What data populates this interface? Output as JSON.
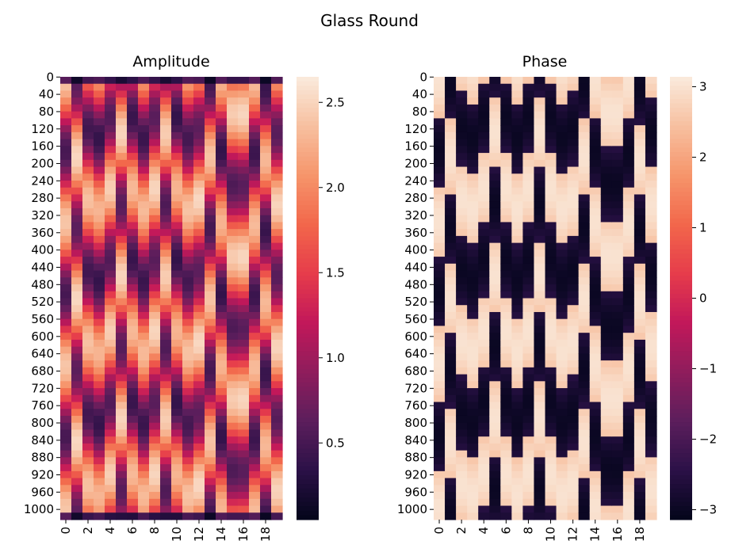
{
  "figure": {
    "suptitle": "Glass Round"
  },
  "colors": {
    "colormap": "rocket",
    "stops": [
      "#03051a",
      "#2b1147",
      "#5c1e5c",
      "#8f1d5c",
      "#c2185a",
      "#e63c4b",
      "#f2674b",
      "#f6956b",
      "#f7c0a0",
      "#faebdd"
    ]
  },
  "chart_data": [
    {
      "type": "heatmap",
      "title": "Amplitude",
      "xlabel": "",
      "ylabel": "",
      "columns": 20,
      "rows_range": [
        0,
        1023
      ],
      "x_tick_labels": [
        "0",
        "2",
        "4",
        "6",
        "8",
        "10",
        "12",
        "14",
        "16",
        "18"
      ],
      "y_tick_labels": [
        "0",
        "40",
        "80",
        "120",
        "160",
        "200",
        "240",
        "280",
        "320",
        "360",
        "400",
        "440",
        "480",
        "520",
        "560",
        "600",
        "640",
        "680",
        "720",
        "760",
        "800",
        "840",
        "880",
        "920",
        "960",
        "1000"
      ],
      "colorbar": {
        "range": [
          0.05,
          2.65
        ],
        "ticks": [
          0.5,
          1.0,
          1.5,
          2.0,
          2.5
        ],
        "tick_labels": [
          "0.5",
          "1.0",
          "1.5",
          "2.0",
          "2.5"
        ]
      },
      "pattern": "arched bands (interference fringes) peaking at column 7; dark minima near rows 390 and 710; low amplitude in first and last rows"
    },
    {
      "type": "heatmap",
      "title": "Phase",
      "xlabel": "",
      "ylabel": "",
      "columns": 20,
      "rows_range": [
        0,
        1023
      ],
      "x_tick_labels": [
        "0",
        "2",
        "4",
        "6",
        "8",
        "10",
        "12",
        "14",
        "16",
        "18"
      ],
      "y_tick_labels": [
        "0",
        "40",
        "80",
        "120",
        "160",
        "200",
        "240",
        "280",
        "320",
        "360",
        "400",
        "440",
        "480",
        "520",
        "560",
        "600",
        "640",
        "680",
        "720",
        "760",
        "800",
        "840",
        "880",
        "920",
        "960",
        "1000"
      ],
      "colorbar": {
        "range": [
          -3.14,
          3.14
        ],
        "ticks": [
          -3,
          -2,
          -1,
          0,
          1,
          2,
          3
        ],
        "tick_labels": [
          "−3",
          "−2",
          "−1",
          "0",
          "1",
          "2",
          "3"
        ]
      },
      "pattern": "wrapped phase alternating between about +3 and -3 along arched bands peaking at column 7"
    }
  ]
}
